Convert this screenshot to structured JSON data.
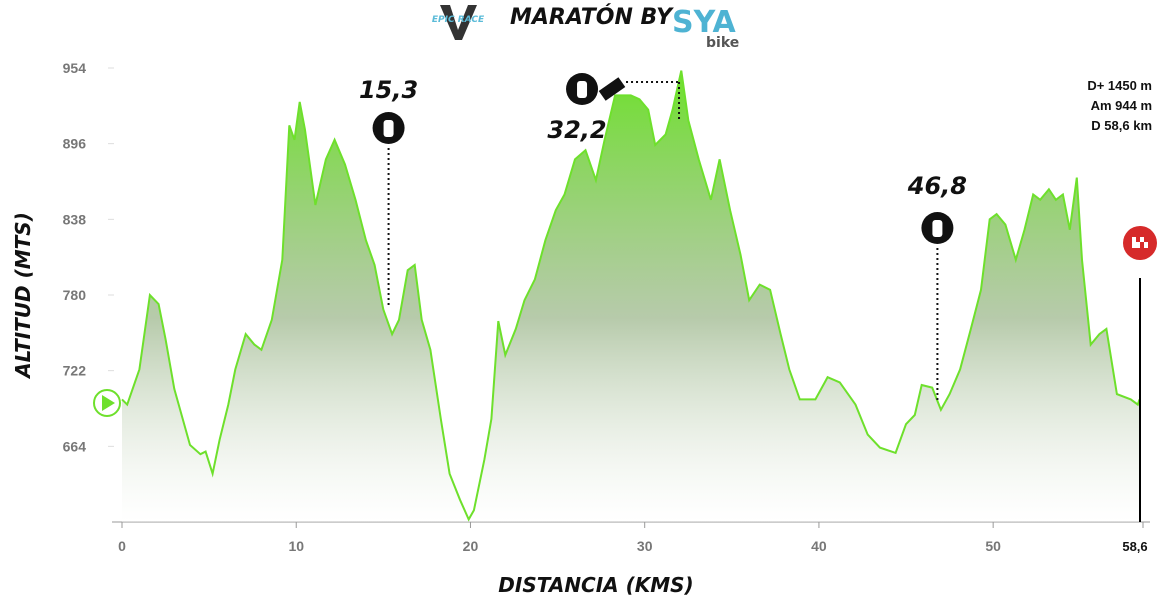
{
  "chart_data": {
    "type": "area",
    "title": "MARATÓN BY",
    "brand": "SYA",
    "brand_sub": "bike",
    "logo": "EPIC RACE",
    "y_label": "ALTITUD (MTS)",
    "x_label": "DISTANCIA (KMS)",
    "stats": [
      "D+ 1450 m",
      "Am 944 m",
      "D 58,6 km"
    ],
    "xlim": [
      0,
      58.6
    ],
    "xticks": [
      0,
      10,
      20,
      30,
      40,
      50,
      {
        "value": 58.6,
        "label": "58,6"
      }
    ],
    "ylim": [
      606,
      954
    ],
    "yticks": [
      664,
      722,
      780,
      838,
      896,
      954
    ],
    "annotations": [
      {
        "value": 15.3,
        "label": "15,3"
      },
      {
        "value": 32.2,
        "label": "32,2"
      },
      {
        "value": 46.8,
        "label": "46,8"
      }
    ],
    "x": [
      0,
      0.3,
      1.0,
      1.6,
      2.1,
      2.5,
      3.0,
      3.9,
      4.5,
      4.8,
      5.2,
      5.6,
      6.1,
      6.5,
      7.1,
      7.6,
      8.0,
      8.6,
      9.2,
      9.6,
      9.9,
      10.2,
      10.5,
      11.1,
      11.7,
      12.2,
      12.8,
      13.4,
      14.0,
      14.5,
      15.0,
      15.5,
      15.9,
      16.4,
      16.8,
      17.2,
      17.7,
      18.3,
      18.8,
      19.4,
      19.9,
      20.2,
      20.8,
      21.2,
      21.6,
      22.0,
      22.6,
      23.1,
      23.7,
      24.3,
      24.9,
      25.4,
      26.0,
      26.6,
      27.2,
      27.7,
      28.3,
      29.2,
      29.7,
      30.2,
      30.6,
      31.2,
      31.6,
      32.1,
      32.5,
      33.1,
      33.8,
      34.3,
      34.9,
      35.5,
      36.0,
      36.6,
      37.2,
      37.8,
      38.3,
      38.9,
      39.8,
      40.5,
      41.2,
      42.1,
      42.8,
      43.5,
      44.4,
      45.0,
      45.5,
      45.9,
      46.5,
      47.0,
      47.5,
      48.1,
      48.7,
      49.3,
      49.8,
      50.2,
      50.7,
      51.3,
      51.8,
      52.3,
      52.7,
      53.2,
      53.6,
      54.0,
      54.4,
      54.8,
      55.1,
      55.6,
      56.1,
      56.5,
      57.1,
      57.9,
      58.3,
      58.4
    ],
    "series": [
      {
        "color": "#6ee02c",
        "values": [
          700,
          696,
          723,
          780,
          773,
          746,
          708,
          665,
          658,
          660,
          643,
          669,
          696,
          723,
          750,
          742,
          738,
          761,
          807,
          910,
          899,
          928,
          907,
          849,
          884,
          899,
          880,
          853,
          822,
          803,
          769,
          750,
          761,
          799,
          803,
          761,
          738,
          685,
          643,
          623,
          608,
          615,
          654,
          685,
          760,
          734,
          754,
          776,
          792,
          822,
          845,
          857,
          884,
          891,
          868,
          899,
          933,
          933,
          930,
          922,
          895,
          903,
          922,
          952,
          914,
          884,
          853,
          884,
          845,
          811,
          776,
          788,
          784,
          750,
          723,
          700,
          700,
          717,
          713,
          696,
          673,
          663,
          659,
          681,
          688,
          711,
          709,
          692,
          704,
          723,
          753,
          784,
          838,
          842,
          834,
          807,
          830,
          857,
          853,
          861,
          853,
          857,
          830,
          870,
          807,
          742,
          750,
          754,
          704,
          700,
          696,
          700
        ]
      }
    ]
  }
}
